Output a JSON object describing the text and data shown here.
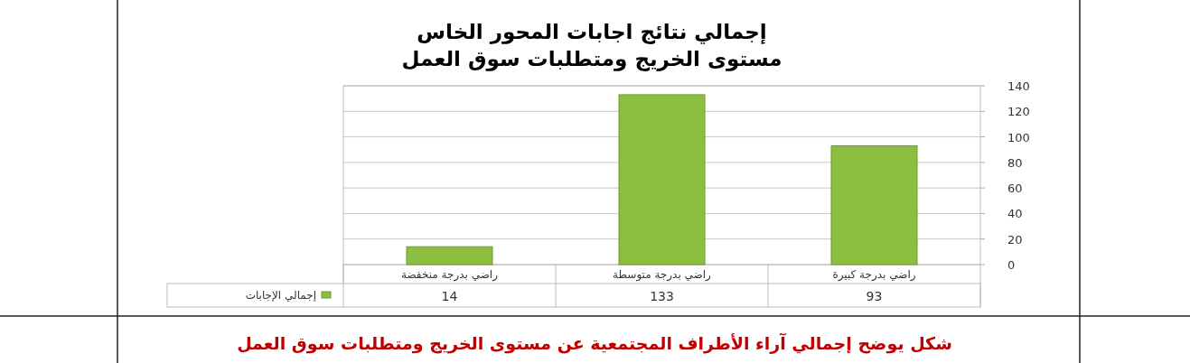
{
  "chart_data": {
    "type": "bar",
    "title": "إجمالي نتائج اجابات المحور الخاس",
    "subtitle": "مستوى الخريج ومتطلبات سوق العمل",
    "categories": [
      "راضي بدرجة منخفضة",
      "راضي بدرجة متوسطة",
      "راضي بدرجة كبيرة"
    ],
    "series": [
      {
        "name": "إجمالي الإجابات",
        "color": "#8cbf3f",
        "values": [
          14,
          133,
          93
        ]
      }
    ],
    "ylim": [
      0,
      140
    ],
    "yticks": [
      0,
      20,
      40,
      60,
      80,
      100,
      120,
      140
    ],
    "grid": "y",
    "data_labels": true,
    "legend": "bottom left",
    "annotations": [
      "شكل يوضح إجمالي آراء الأطراف المجتمعية عن مستوى الخريج ومتطلبات سوق العمل"
    ]
  }
}
